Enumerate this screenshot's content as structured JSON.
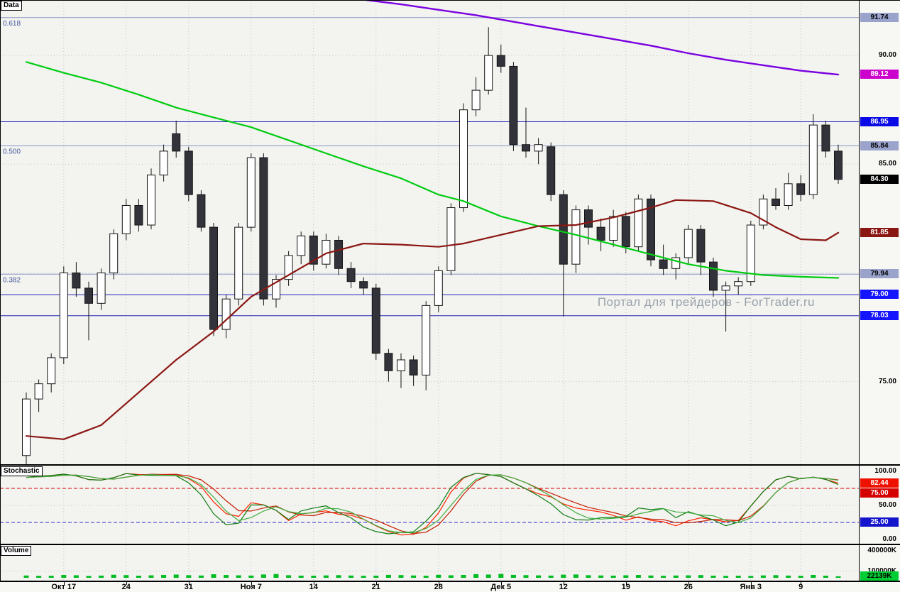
{
  "watermark": "Портал для трейдеров - ForTrader.ru",
  "panels": {
    "price_label": "Data",
    "stoch_label": "Stochastic",
    "volume_label": "Volume"
  },
  "chart_data": {
    "type": "candlestick",
    "title": "Data",
    "x_ticks": [
      {
        "i": 3,
        "label": "Окт 17"
      },
      {
        "i": 8,
        "label": "24"
      },
      {
        "i": 13,
        "label": "31"
      },
      {
        "i": 18,
        "label": "Ноя 7"
      },
      {
        "i": 23,
        "label": "14"
      },
      {
        "i": 28,
        "label": "21"
      },
      {
        "i": 33,
        "label": "28"
      },
      {
        "i": 38,
        "label": "Дек 5"
      },
      {
        "i": 43,
        "label": "12"
      },
      {
        "i": 48,
        "label": "19"
      },
      {
        "i": 53,
        "label": "26"
      },
      {
        "i": 58,
        "label": "Янв 3"
      },
      {
        "i": 62,
        "label": "9"
      }
    ],
    "price_axis": {
      "min": 71.2,
      "max": 92.55,
      "plain_ticks": [
        {
          "value": 90,
          "label": "90.00"
        },
        {
          "value": 85,
          "label": "85.00"
        },
        {
          "value": 75,
          "label": "75.00"
        }
      ],
      "grid_values": [
        90,
        85,
        80,
        75
      ]
    },
    "candles": [
      [
        71.6,
        74.5,
        71.2,
        74.2
      ],
      [
        74.2,
        75.1,
        73.6,
        74.9
      ],
      [
        74.9,
        76.3,
        74.5,
        76.1
      ],
      [
        76.1,
        80.3,
        75.8,
        80.0
      ],
      [
        80.0,
        80.5,
        78.9,
        79.3
      ],
      [
        79.3,
        79.6,
        76.9,
        78.6
      ],
      [
        78.6,
        80.2,
        78.3,
        80.0
      ],
      [
        80.0,
        82.0,
        79.7,
        81.8
      ],
      [
        81.8,
        83.4,
        81.5,
        83.1
      ],
      [
        83.1,
        83.4,
        81.9,
        82.2
      ],
      [
        82.2,
        84.8,
        82.0,
        84.5
      ],
      [
        84.5,
        85.9,
        84.2,
        85.6
      ],
      [
        86.4,
        87.0,
        85.3,
        85.6
      ],
      [
        85.6,
        85.8,
        83.3,
        83.6
      ],
      [
        83.6,
        83.8,
        81.9,
        82.1
      ],
      [
        82.1,
        82.3,
        77.1,
        77.4
      ],
      [
        77.4,
        79.0,
        77.0,
        78.8
      ],
      [
        78.8,
        82.3,
        78.5,
        82.1
      ],
      [
        82.1,
        85.5,
        81.9,
        85.3
      ],
      [
        85.3,
        85.5,
        78.5,
        78.8
      ],
      [
        78.8,
        79.9,
        78.4,
        79.7
      ],
      [
        79.7,
        81.0,
        79.4,
        80.8
      ],
      [
        80.8,
        81.9,
        80.4,
        81.7
      ],
      [
        81.7,
        81.9,
        80.1,
        80.4
      ],
      [
        80.4,
        81.8,
        80.2,
        81.5
      ],
      [
        81.5,
        81.7,
        79.9,
        80.2
      ],
      [
        80.2,
        80.5,
        79.3,
        79.6
      ],
      [
        79.6,
        79.8,
        79.0,
        79.3
      ],
      [
        79.3,
        79.5,
        76.0,
        76.3
      ],
      [
        76.3,
        76.5,
        75.0,
        75.5
      ],
      [
        75.5,
        76.3,
        74.7,
        76.0
      ],
      [
        76.0,
        76.2,
        74.8,
        75.3
      ],
      [
        75.3,
        78.7,
        74.6,
        78.5
      ],
      [
        78.5,
        80.3,
        78.2,
        80.1
      ],
      [
        80.1,
        83.2,
        79.9,
        83.0
      ],
      [
        83.0,
        87.8,
        82.8,
        87.5
      ],
      [
        87.5,
        89.0,
        87.2,
        88.4
      ],
      [
        88.4,
        91.3,
        88.2,
        90.0
      ],
      [
        90.0,
        90.5,
        89.2,
        89.5
      ],
      [
        89.5,
        89.7,
        85.6,
        85.9
      ],
      [
        85.9,
        87.6,
        85.3,
        85.6
      ],
      [
        85.6,
        86.2,
        85.0,
        85.9
      ],
      [
        85.8,
        86.0,
        83.3,
        83.6
      ],
      [
        83.6,
        83.8,
        78.0,
        80.4
      ],
      [
        80.4,
        83.1,
        80.0,
        82.9
      ],
      [
        82.9,
        83.1,
        81.3,
        82.1
      ],
      [
        82.1,
        82.5,
        81.0,
        81.5
      ],
      [
        81.5,
        82.9,
        81.2,
        82.6
      ],
      [
        82.6,
        82.8,
        80.9,
        81.2
      ],
      [
        81.2,
        83.6,
        81.0,
        83.4
      ],
      [
        83.4,
        83.6,
        80.3,
        80.6
      ],
      [
        80.6,
        81.3,
        79.9,
        80.2
      ],
      [
        80.2,
        80.9,
        79.7,
        80.7
      ],
      [
        80.7,
        82.2,
        80.4,
        82.0
      ],
      [
        82.0,
        82.2,
        79.9,
        80.5
      ],
      [
        80.5,
        80.7,
        78.9,
        79.2
      ],
      [
        79.2,
        79.6,
        77.3,
        79.4
      ],
      [
        79.4,
        79.8,
        79.0,
        79.6
      ],
      [
        79.6,
        82.4,
        79.4,
        82.2
      ],
      [
        82.2,
        83.6,
        82.0,
        83.4
      ],
      [
        83.4,
        83.9,
        82.9,
        83.1
      ],
      [
        83.1,
        84.6,
        82.9,
        84.1
      ],
      [
        84.1,
        84.5,
        83.3,
        83.6
      ],
      [
        83.6,
        87.3,
        83.4,
        86.8
      ],
      [
        86.8,
        87.0,
        85.3,
        85.6
      ],
      [
        85.6,
        85.9,
        84.1,
        84.3
      ]
    ],
    "levels": [
      {
        "price": 91.74,
        "label": "91.74",
        "kind": "fib",
        "name": "0.618",
        "line": "#8894c4",
        "bg": "#99a3cc",
        "fg": "#000000"
      },
      {
        "price": 86.95,
        "label": "86.95",
        "kind": "alert",
        "line": "#2727b8",
        "bg": "#0a0ae6",
        "fg": "#ffffff"
      },
      {
        "price": 85.84,
        "label": "85.84",
        "kind": "fib",
        "name": "0.500",
        "line": "#8894c4",
        "bg": "#99a3cc",
        "fg": "#000000"
      },
      {
        "price": 79.94,
        "label": "79.94",
        "kind": "fib",
        "name": "0.382",
        "line": "#8894c4",
        "bg": "#99a3cc",
        "fg": "#000000"
      },
      {
        "price": 79.0,
        "label": "79.00",
        "kind": "alert",
        "line": "#2727b8",
        "bg": "#1414ff",
        "fg": "#ffffff"
      },
      {
        "price": 78.03,
        "label": "78.03",
        "kind": "alert",
        "line": "#2727b8",
        "bg": "#1414ff",
        "fg": "#ffffff"
      }
    ],
    "last_price": {
      "value": 84.3,
      "label": "84.30",
      "bg": "#000000",
      "fg": "#ffffff"
    },
    "ma_end_labels": [
      {
        "value": 89.12,
        "label": "89.12",
        "bg": "#cc00cc",
        "fg": "#ffffff"
      },
      {
        "value": 81.85,
        "label": "81.85",
        "bg": "#8b1713",
        "fg": "#ffffff"
      }
    ],
    "overlays": [
      {
        "name": "ma-green",
        "color": "#00cc11",
        "width": 2.2,
        "points": [
          [
            0,
            89.7
          ],
          [
            3,
            89.2
          ],
          [
            6,
            88.75
          ],
          [
            9,
            88.2
          ],
          [
            12,
            87.6
          ],
          [
            15,
            87.15
          ],
          [
            18,
            86.7
          ],
          [
            21,
            86.1
          ],
          [
            24,
            85.5
          ],
          [
            27,
            84.9
          ],
          [
            30,
            84.35
          ],
          [
            33,
            83.6
          ],
          [
            35,
            83.3
          ],
          [
            38,
            82.6
          ],
          [
            41,
            82.15
          ],
          [
            44,
            81.75
          ],
          [
            47,
            81.3
          ],
          [
            50,
            80.85
          ],
          [
            53,
            80.4
          ],
          [
            56,
            80.1
          ],
          [
            59,
            79.9
          ],
          [
            62,
            79.82
          ],
          [
            65,
            79.77
          ]
        ]
      },
      {
        "name": "ma-darkred",
        "color": "#8b1713",
        "width": 2.2,
        "points": [
          [
            0,
            72.5
          ],
          [
            3,
            72.35
          ],
          [
            6,
            73.0
          ],
          [
            9,
            74.5
          ],
          [
            12,
            76.0
          ],
          [
            15,
            77.3
          ],
          [
            18,
            78.9
          ],
          [
            21,
            79.9
          ],
          [
            24,
            80.9
          ],
          [
            27,
            81.35
          ],
          [
            30,
            81.3
          ],
          [
            33,
            81.2
          ],
          [
            35,
            81.35
          ],
          [
            38,
            81.75
          ],
          [
            41,
            82.15
          ],
          [
            44,
            82.2
          ],
          [
            47,
            82.55
          ],
          [
            50,
            83.0
          ],
          [
            52,
            83.35
          ],
          [
            55,
            83.3
          ],
          [
            58,
            82.75
          ],
          [
            60,
            82.1
          ],
          [
            62,
            81.55
          ],
          [
            64,
            81.5
          ],
          [
            65,
            81.85
          ]
        ]
      },
      {
        "name": "ma-purple",
        "color": "#7a00e0",
        "width": 2.4,
        "points": [
          [
            26.5,
            92.6
          ],
          [
            30,
            92.35
          ],
          [
            33,
            92.1
          ],
          [
            36,
            91.85
          ],
          [
            38,
            91.65
          ],
          [
            41,
            91.35
          ],
          [
            44,
            91.05
          ],
          [
            47,
            90.75
          ],
          [
            50,
            90.45
          ],
          [
            53,
            90.1
          ],
          [
            56,
            89.8
          ],
          [
            59,
            89.55
          ],
          [
            62,
            89.3
          ],
          [
            65,
            89.12
          ]
        ]
      }
    ],
    "stochastic": {
      "range": [
        0,
        100
      ],
      "pairs": [
        {
          "k": 14,
          "smooth": 3,
          "colors": [
            "#ff2200",
            "#c41e00"
          ]
        },
        {
          "k": 9,
          "smooth": 3,
          "colors": [
            "#0e7d12",
            "#3fae3f"
          ]
        }
      ],
      "levels": [
        {
          "value": 75,
          "color": "#d40000"
        },
        {
          "value": 25,
          "color": "#2828cc"
        }
      ],
      "plain_ticks": [
        {
          "value": 100,
          "label": "100.00"
        },
        {
          "value": 50,
          "label": "50.00"
        },
        {
          "value": 0,
          "label": "0.00"
        }
      ],
      "value_labels": [
        {
          "value": 82.44,
          "label": "82.44",
          "bg": "#ee1100",
          "fg": "#ffffff"
        },
        {
          "value": 75,
          "label": "75.00",
          "bg": "#d40000",
          "fg": "#ffffff"
        },
        {
          "value": 25,
          "label": "25.00",
          "bg": "#1414cc",
          "fg": "#ffffff"
        }
      ]
    },
    "volume": {
      "axis_max_k": 400000,
      "bar_color": "#00bb22",
      "ticks": [
        {
          "value": 400000,
          "label": "400000K"
        },
        {
          "value": 100000,
          "label": "100000K"
        }
      ],
      "last_label": {
        "value": 22139,
        "label": "22139K",
        "bg": "#00cc33",
        "fg": "#000000"
      },
      "values_k": [
        34200,
        28900,
        30150,
        41800,
        37600,
        27300,
        32900,
        45100,
        39800,
        31200,
        36400,
        42700,
        47900,
        38500,
        34100,
        52600,
        41200,
        36800,
        33500,
        49300,
        56200,
        37900,
        32400,
        30800,
        35600,
        39100,
        33800,
        29500,
        31900,
        43200,
        40100,
        34600,
        30700,
        44800,
        37200,
        41900,
        54600,
        48100,
        57800,
        43200,
        39400,
        36100,
        32800,
        46200,
        49700,
        38300,
        34900,
        32100,
        37500,
        41600,
        34200,
        30600,
        33900,
        36400,
        40200,
        31800,
        28400,
        30900,
        27600,
        35200,
        38700,
        33100,
        29800,
        42300,
        31400,
        22139
      ]
    }
  }
}
